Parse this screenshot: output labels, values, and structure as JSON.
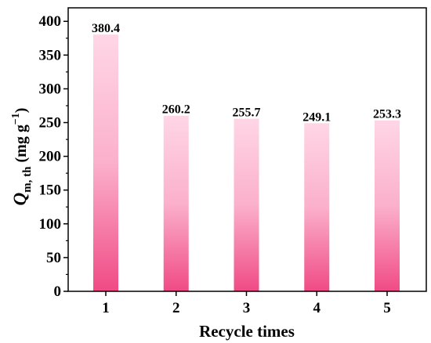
{
  "chart_data": {
    "type": "bar",
    "categories": [
      "1",
      "2",
      "3",
      "4",
      "5"
    ],
    "values": [
      380.4,
      260.2,
      255.7,
      249.1,
      253.3
    ],
    "data_labels": [
      "380.4",
      "260.2",
      "255.7",
      "249.1",
      "253.3"
    ],
    "xlabel": "Recycle times",
    "ylabel": {
      "symbol": "Q",
      "subscript": "m, th",
      "unit_open": " (mg g",
      "superscript": "−1",
      "unit_close": ")"
    },
    "ylim": [
      0,
      420
    ],
    "yticks": [
      0,
      50,
      100,
      150,
      200,
      250,
      300,
      350,
      400
    ],
    "grid": false,
    "legend": "none",
    "colors": {
      "bar_top": "#ffd6e6",
      "bar_bottom": "#f04a85",
      "axis": "#000000"
    }
  }
}
